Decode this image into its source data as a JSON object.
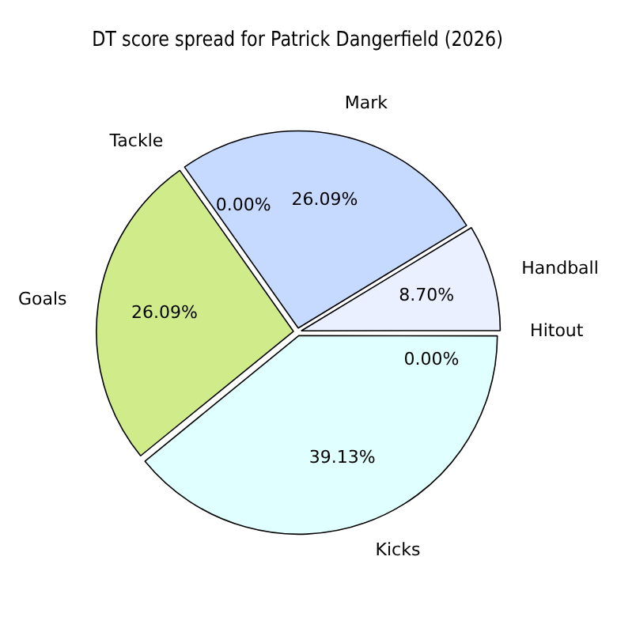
{
  "chart_data": {
    "type": "pie",
    "title": "DT score spread for Patrick Dangerfield (2026)",
    "categories": [
      "Kicks",
      "Goals",
      "Tackle",
      "Mark",
      "Handball",
      "Hitout"
    ],
    "values": [
      39.13,
      26.09,
      0,
      26.09,
      8.7,
      0
    ],
    "colors": [
      "#e0ffff",
      "#d0eb8a",
      "#f0f0f0",
      "#c6d9ff",
      "#eaf0ff",
      "#f5f5ff"
    ],
    "value_labels": [
      "39.13%",
      "26.09%",
      "0.00%",
      "26.09%",
      "8.70%",
      "0.00%"
    ],
    "legend": false
  }
}
